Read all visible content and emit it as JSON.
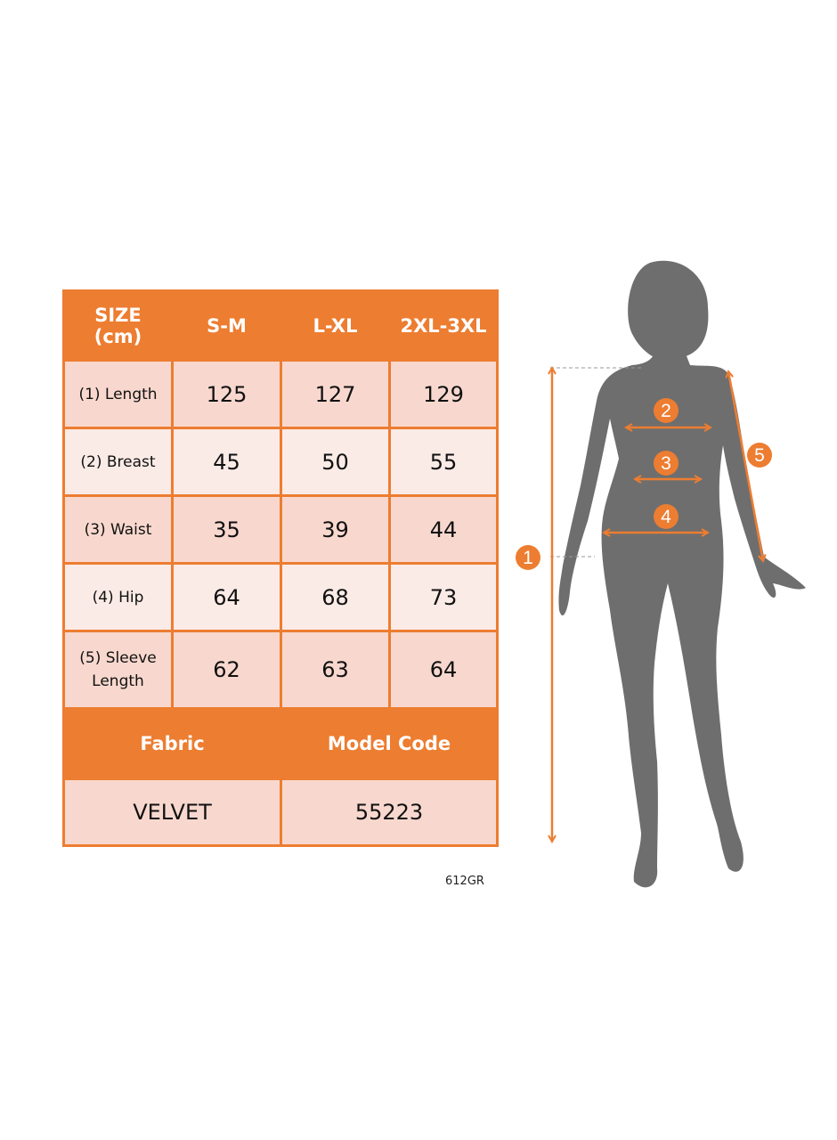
{
  "table": {
    "header": [
      "SIZE\n(cm)",
      "S-M",
      "L-XL",
      "2XL-3XL"
    ],
    "header_line1": "SIZE",
    "header_line2": "(cm)",
    "rows": [
      {
        "label": "(1) Length",
        "values": [
          "125",
          "127",
          "129"
        ]
      },
      {
        "label": "(2) Breast",
        "values": [
          "45",
          "50",
          "55"
        ]
      },
      {
        "label": "(3) Waist",
        "values": [
          "35",
          "39",
          "44"
        ]
      },
      {
        "label": "(4) Hip",
        "values": [
          "64",
          "68",
          "73"
        ]
      },
      {
        "label_line1": "(5) Sleeve",
        "label_line2": "Length",
        "values": [
          "62",
          "63",
          "64"
        ]
      }
    ],
    "fabric_label": "Fabric",
    "model_code_label": "Model Code",
    "fabric_value": "VELVET",
    "model_code_value": "55223"
  },
  "product_code": "612GR",
  "figure": {
    "markers": [
      "1",
      "2",
      "3",
      "4",
      "5"
    ]
  },
  "colors": {
    "accent": "#ED7D31",
    "row_dark": "#F8D8CE",
    "row_light": "#FBEBE6",
    "silhouette": "#6E6E6E"
  }
}
